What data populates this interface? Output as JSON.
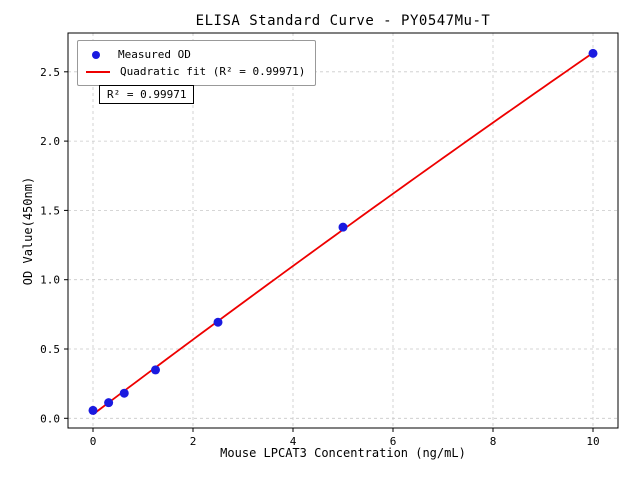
{
  "chart_data": {
    "type": "scatter",
    "title": "ELISA Standard Curve - PY0547Mu-T",
    "xlabel": "Mouse LPCAT3 Concentration (ng/mL)",
    "ylabel": "OD Value(450nm)",
    "points": {
      "x": [
        0,
        0.3125,
        0.625,
        1.25,
        2.5,
        5,
        10
      ],
      "y": [
        0.057,
        0.113,
        0.181,
        0.349,
        0.693,
        1.379,
        2.633
      ]
    },
    "fit": {
      "type": "quadratic",
      "r_squared_text": "R² = 0.99971",
      "x_range": [
        0,
        10
      ]
    },
    "legend": [
      {
        "label": "Measured OD",
        "marker": "dot"
      },
      {
        "label": "Quadratic fit (R² = 0.99971)",
        "marker": "line"
      }
    ],
    "annotation": "R² = 0.99971",
    "xlim": [
      -0.5,
      10.5
    ],
    "ylim": [
      -0.07,
      2.78
    ],
    "xticks": [
      0,
      2,
      4,
      6,
      8,
      10
    ],
    "xtick_labels": [
      "0",
      "2",
      "4",
      "6",
      "8",
      "10"
    ],
    "yticks": [
      0,
      0.5,
      1.0,
      1.5,
      2.0,
      2.5
    ],
    "ytick_labels": [
      "0.0",
      "0.5",
      "1.0",
      "1.5",
      "2.0",
      "2.5"
    ],
    "grid": true,
    "legend_position": "upper-left",
    "colors": {
      "point": "#1a1ae0",
      "fit_line": "#ee0000",
      "grid": "#c9c9c9",
      "axis": "#000000"
    }
  }
}
